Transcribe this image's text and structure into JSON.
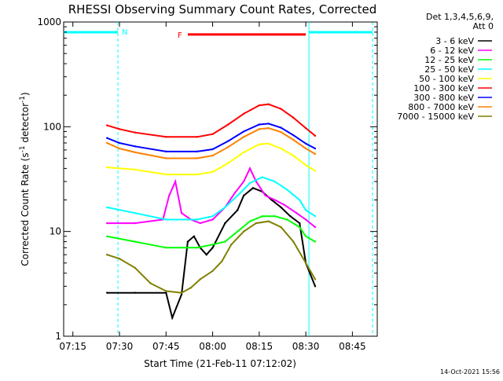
{
  "chart_data": {
    "type": "line",
    "title": "RHESSI Observing Summary Count Rates, Corrected",
    "xlabel": "Start Time (21-Feb-11 07:12:02)",
    "ylabel": "Corrected Count Rate (s",
    "ylabel_sup1": "-1",
    "ylabel_mid": " detector",
    "ylabel_sup2": "-1",
    "ylabel_end": ")",
    "y_scale": "log",
    "ylim": [
      1,
      1000
    ],
    "xlim": [
      "07:12:02",
      "08:53:00"
    ],
    "x_ticks": [
      "07:15",
      "07:30",
      "07:45",
      "08:00",
      "08:15",
      "08:30",
      "08:45"
    ],
    "y_ticks": [
      1,
      10,
      100,
      1000
    ],
    "y_tick_labels": [
      "1",
      "10",
      "100",
      "1000"
    ],
    "grid": false,
    "legend_header": [
      "Det 1,3,4,5,6,9,",
      "Att 0"
    ],
    "legend_position": "right",
    "timestamp": "14-Oct-2021 15:56",
    "series": [
      {
        "name": "3 - 6 keV",
        "color": "#000000",
        "points": [
          [
            "07:26",
            2.6
          ],
          [
            "07:35",
            2.6
          ],
          [
            "07:45",
            2.6
          ],
          [
            "07:47",
            1.5
          ],
          [
            "07:50",
            2.5
          ],
          [
            "07:52",
            8
          ],
          [
            "07:54",
            9
          ],
          [
            "07:56",
            7
          ],
          [
            "07:58",
            6
          ],
          [
            "08:00",
            7
          ],
          [
            "08:04",
            12
          ],
          [
            "08:08",
            16
          ],
          [
            "08:10",
            22
          ],
          [
            "08:13",
            26
          ],
          [
            "08:16",
            24
          ],
          [
            "08:19",
            20
          ],
          [
            "08:22",
            17
          ],
          [
            "08:25",
            14
          ],
          [
            "08:28",
            12
          ],
          [
            "08:30",
            5
          ],
          [
            "08:33",
            3
          ]
        ]
      },
      {
        "name": "6 - 12 keV",
        "color": "#ff00ff",
        "points": [
          [
            "07:26",
            12
          ],
          [
            "07:35",
            12
          ],
          [
            "07:44",
            13
          ],
          [
            "07:46",
            22
          ],
          [
            "07:48",
            30
          ],
          [
            "07:50",
            15
          ],
          [
            "07:53",
            13
          ],
          [
            "07:56",
            12
          ],
          [
            "08:00",
            13
          ],
          [
            "08:04",
            17
          ],
          [
            "08:07",
            23
          ],
          [
            "08:10",
            30
          ],
          [
            "08:12",
            40
          ],
          [
            "08:14",
            30
          ],
          [
            "08:17",
            22
          ],
          [
            "08:20",
            20
          ],
          [
            "08:23",
            18
          ],
          [
            "08:27",
            15
          ],
          [
            "08:30",
            13
          ],
          [
            "08:33",
            11
          ]
        ]
      },
      {
        "name": "12 - 25 keV",
        "color": "#00ff00",
        "points": [
          [
            "07:26",
            9
          ],
          [
            "07:35",
            8
          ],
          [
            "07:45",
            7
          ],
          [
            "07:55",
            7
          ],
          [
            "08:00",
            7.5
          ],
          [
            "08:04",
            8
          ],
          [
            "08:08",
            10
          ],
          [
            "08:12",
            12.5
          ],
          [
            "08:16",
            14
          ],
          [
            "08:20",
            14
          ],
          [
            "08:24",
            13
          ],
          [
            "08:28",
            11
          ],
          [
            "08:30",
            9
          ],
          [
            "08:33",
            8
          ]
        ]
      },
      {
        "name": "25 - 50 keV",
        "color": "#00ffff",
        "points": [
          [
            "07:26",
            17
          ],
          [
            "07:35",
            15
          ],
          [
            "07:45",
            13
          ],
          [
            "07:55",
            13
          ],
          [
            "08:00",
            14
          ],
          [
            "08:04",
            17
          ],
          [
            "08:08",
            22
          ],
          [
            "08:12",
            29
          ],
          [
            "08:16",
            33
          ],
          [
            "08:20",
            30
          ],
          [
            "08:24",
            25
          ],
          [
            "08:28",
            20
          ],
          [
            "08:30",
            16
          ],
          [
            "08:33",
            14
          ]
        ]
      },
      {
        "name": "50 - 100 keV",
        "color": "#ffff00",
        "points": [
          [
            "07:26",
            41
          ],
          [
            "07:35",
            39
          ],
          [
            "07:45",
            35
          ],
          [
            "07:55",
            35
          ],
          [
            "08:00",
            37
          ],
          [
            "08:05",
            45
          ],
          [
            "08:10",
            57
          ],
          [
            "08:15",
            68
          ],
          [
            "08:18",
            69
          ],
          [
            "08:22",
            62
          ],
          [
            "08:26",
            53
          ],
          [
            "08:30",
            43
          ],
          [
            "08:33",
            38
          ]
        ]
      },
      {
        "name": "100 - 300 keV",
        "color": "#ff0000",
        "points": [
          [
            "07:26",
            103
          ],
          [
            "07:30",
            95
          ],
          [
            "07:35",
            88
          ],
          [
            "07:45",
            80
          ],
          [
            "07:55",
            80
          ],
          [
            "08:00",
            85
          ],
          [
            "08:05",
            105
          ],
          [
            "08:10",
            133
          ],
          [
            "08:15",
            160
          ],
          [
            "08:18",
            164
          ],
          [
            "08:22",
            148
          ],
          [
            "08:26",
            122
          ],
          [
            "08:30",
            97
          ],
          [
            "08:33",
            82
          ]
        ]
      },
      {
        "name": "300 - 800 keV",
        "color": "#0000ff",
        "points": [
          [
            "07:26",
            78
          ],
          [
            "07:30",
            70
          ],
          [
            "07:35",
            65
          ],
          [
            "07:45",
            58
          ],
          [
            "07:55",
            58
          ],
          [
            "08:00",
            61
          ],
          [
            "08:05",
            73
          ],
          [
            "08:10",
            90
          ],
          [
            "08:15",
            105
          ],
          [
            "08:18",
            107
          ],
          [
            "08:22",
            98
          ],
          [
            "08:26",
            83
          ],
          [
            "08:30",
            69
          ],
          [
            "08:33",
            62
          ]
        ]
      },
      {
        "name": "800 - 7000 keV",
        "color": "#ff8000",
        "points": [
          [
            "07:26",
            70
          ],
          [
            "07:30",
            62
          ],
          [
            "07:35",
            57
          ],
          [
            "07:45",
            50
          ],
          [
            "07:55",
            50
          ],
          [
            "08:00",
            53
          ],
          [
            "08:05",
            64
          ],
          [
            "08:10",
            80
          ],
          [
            "08:15",
            95
          ],
          [
            "08:18",
            97
          ],
          [
            "08:22",
            89
          ],
          [
            "08:26",
            75
          ],
          [
            "08:30",
            62
          ],
          [
            "08:33",
            55
          ]
        ]
      },
      {
        "name": "7000 - 15000 keV",
        "color": "#808000",
        "points": [
          [
            "07:26",
            6
          ],
          [
            "07:30",
            5.5
          ],
          [
            "07:35",
            4.5
          ],
          [
            "07:40",
            3.2
          ],
          [
            "07:45",
            2.7
          ],
          [
            "07:50",
            2.6
          ],
          [
            "07:53",
            2.9
          ],
          [
            "07:56",
            3.5
          ],
          [
            "08:00",
            4.2
          ],
          [
            "08:03",
            5.2
          ],
          [
            "08:06",
            7.5
          ],
          [
            "08:10",
            10
          ],
          [
            "08:14",
            12
          ],
          [
            "08:18",
            12.5
          ],
          [
            "08:22",
            11
          ],
          [
            "08:26",
            8
          ],
          [
            "08:30",
            5
          ],
          [
            "08:33",
            3.5
          ]
        ]
      }
    ],
    "annotations": {
      "N": {
        "label": "N",
        "color": "#00ffff",
        "bars": [
          [
            "07:12:02",
            "07:29:30"
          ],
          [
            "08:31:00",
            "08:51:30"
          ]
        ],
        "vlines": [
          "07:29:30",
          "08:31:00",
          "08:51:30"
        ]
      },
      "F": {
        "label": "F",
        "color": "#ff0000",
        "bars": [
          [
            "07:52:00",
            "08:30:00"
          ]
        ],
        "bar_value": 760
      }
    }
  }
}
